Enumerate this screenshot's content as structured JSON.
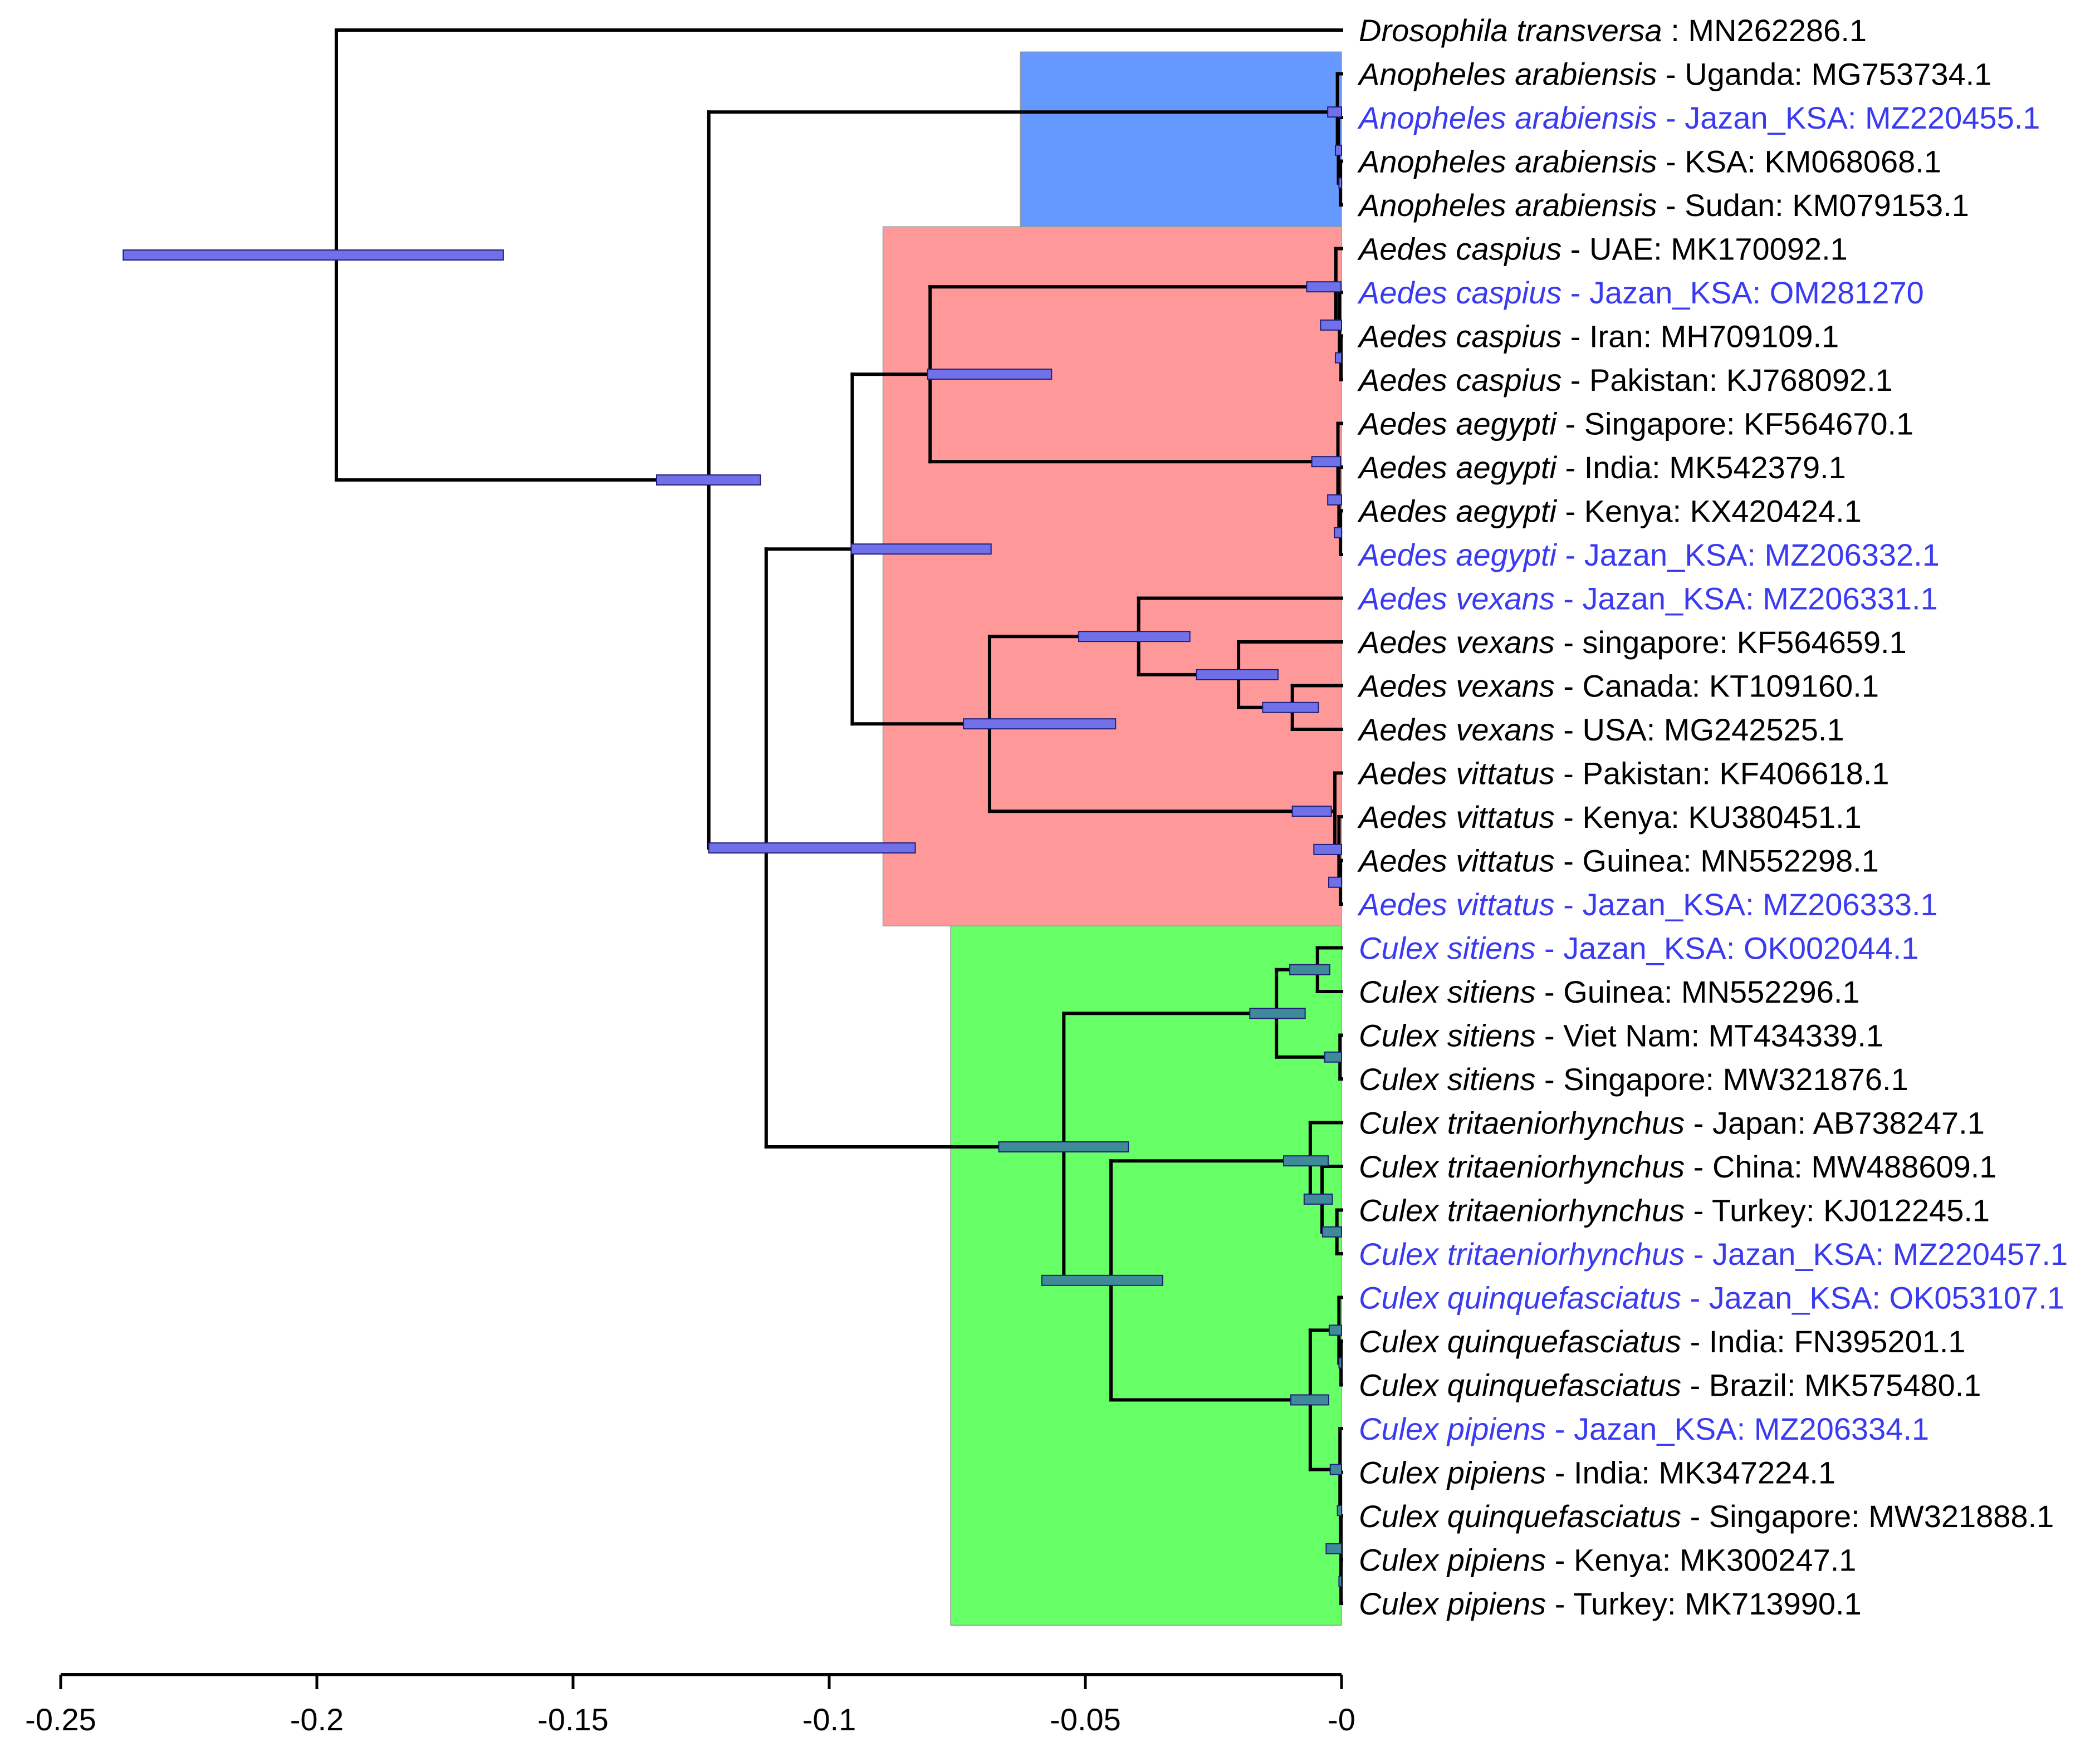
{
  "figure": {
    "type": "time-calibrated phylogenetic tree",
    "colors": {
      "branch": "#000000",
      "highlight_text": "#3a3af0",
      "normal_text": "#000000",
      "bar_fill_main": "#7070e8",
      "bar_fill_green": "#3e8a98",
      "bar_stroke": "#1f1f7a",
      "clade_anopheles": "#6699ff",
      "clade_aedes": "#ff9999",
      "clade_culex": "#66ff66"
    }
  },
  "taxa": [
    {
      "species": "Drosophila transversa",
      "sep": " : ",
      "location": "",
      "accession": "MN262286.1",
      "highlight": false
    },
    {
      "species": "Anopheles arabiensis",
      "sep": " - ",
      "location": "Uganda",
      "accession": "MG753734.1",
      "highlight": false
    },
    {
      "species": "Anopheles arabiensis",
      "sep": " - ",
      "location": "Jazan_KSA",
      "accession": "MZ220455.1",
      "highlight": true
    },
    {
      "species": "Anopheles arabiensis",
      "sep": " - ",
      "location": "KSA",
      "accession": "KM068068.1",
      "highlight": false
    },
    {
      "species": "Anopheles arabiensis",
      "sep": " - ",
      "location": "Sudan",
      "accession": "KM079153.1",
      "highlight": false
    },
    {
      "species": "Aedes caspius",
      "sep": " - ",
      "location": "UAE",
      "accession": "MK170092.1",
      "highlight": false
    },
    {
      "species": "Aedes caspius",
      "sep": " - ",
      "location": "Jazan_KSA",
      "accession": "OM281270",
      "highlight": true
    },
    {
      "species": "Aedes caspius",
      "sep": " - ",
      "location": "Iran",
      "accession": "MH709109.1",
      "highlight": false
    },
    {
      "species": "Aedes caspius",
      "sep": " - ",
      "location": "Pakistan",
      "accession": "KJ768092.1",
      "highlight": false
    },
    {
      "species": "Aedes aegypti",
      "sep": " - ",
      "location": "Singapore",
      "accession": "KF564670.1",
      "highlight": false
    },
    {
      "species": "Aedes aegypti",
      "sep": " - ",
      "location": "India",
      "accession": "MK542379.1",
      "highlight": false
    },
    {
      "species": "Aedes aegypti",
      "sep": " - ",
      "location": "Kenya",
      "accession": "KX420424.1",
      "highlight": false
    },
    {
      "species": "Aedes aegypti",
      "sep": " - ",
      "location": "Jazan_KSA",
      "accession": "MZ206332.1",
      "highlight": true
    },
    {
      "species": "Aedes vexans",
      "sep": " - ",
      "location": "Jazan_KSA",
      "accession": "MZ206331.1",
      "highlight": true
    },
    {
      "species": "Aedes vexans",
      "sep": " - ",
      "location": "singapore",
      "accession": "KF564659.1",
      "highlight": false
    },
    {
      "species": "Aedes vexans",
      "sep": " - ",
      "location": "Canada",
      "accession": "KT109160.1",
      "highlight": false
    },
    {
      "species": "Aedes vexans",
      "sep": " - ",
      "location": "USA",
      "accession": "MG242525.1",
      "highlight": false
    },
    {
      "species": "Aedes vittatus",
      "sep": " - ",
      "location": "Pakistan",
      "accession": "KF406618.1",
      "highlight": false
    },
    {
      "species": "Aedes vittatus",
      "sep": " - ",
      "location": "Kenya",
      "accession": "KU380451.1",
      "highlight": false
    },
    {
      "species": "Aedes vittatus",
      "sep": " - ",
      "location": "Guinea",
      "accession": "MN552298.1",
      "highlight": false
    },
    {
      "species": "Aedes vittatus",
      "sep": " - ",
      "location": "Jazan_KSA",
      "accession": "MZ206333.1",
      "highlight": true
    },
    {
      "species": "Culex sitiens",
      "sep": " - ",
      "location": "Jazan_KSA",
      "accession": "OK002044.1",
      "highlight": true
    },
    {
      "species": "Culex sitiens",
      "sep": " - ",
      "location": "Guinea",
      "accession": "MN552296.1",
      "highlight": false
    },
    {
      "species": "Culex sitiens",
      "sep": " - ",
      "location": "Viet Nam",
      "accession": "MT434339.1",
      "highlight": false
    },
    {
      "species": "Culex sitiens",
      "sep": " - ",
      "location": "Singapore",
      "accession": "MW321876.1",
      "highlight": false
    },
    {
      "species": "Culex tritaeniorhynchus",
      "sep": " - ",
      "location": "Japan",
      "accession": "AB738247.1",
      "highlight": false
    },
    {
      "species": "Culex tritaeniorhynchus",
      "sep": " - ",
      "location": "China",
      "accession": "MW488609.1",
      "highlight": false
    },
    {
      "species": "Culex tritaeniorhynchus",
      "sep": " - ",
      "location": "Turkey",
      "accession": "KJ012245.1",
      "highlight": false
    },
    {
      "species": "Culex tritaeniorhynchus",
      "sep": " - ",
      "location": "Jazan_KSA",
      "accession": "MZ220457.1",
      "highlight": true
    },
    {
      "species": "Culex quinquefasciatus",
      "sep": " - ",
      "location": "Jazan_KSA",
      "accession": "OK053107.1",
      "highlight": true
    },
    {
      "species": "Culex quinquefasciatus",
      "sep": " - ",
      "location": "India",
      "accession": "FN395201.1",
      "highlight": false
    },
    {
      "species": "Culex quinquefasciatus",
      "sep": " - ",
      "location": "Brazil",
      "accession": "MK575480.1",
      "highlight": false
    },
    {
      "species": "Culex pipiens",
      "sep": " - ",
      "location": "Jazan_KSA",
      "accession": "MZ206334.1",
      "highlight": true
    },
    {
      "species": "Culex pipiens",
      "sep": " - ",
      "location": "India",
      "accession": "MK347224.1",
      "highlight": false
    },
    {
      "species": "Culex quinquefasciatus",
      "sep": " - ",
      "location": "Singapore",
      "accession": "MW321888.1",
      "highlight": false
    },
    {
      "species": "Culex pipiens",
      "sep": " - ",
      "location": "Kenya",
      "accession": "MK300247.1",
      "highlight": false
    },
    {
      "species": "Culex pipiens",
      "sep": " - ",
      "location": "Turkey",
      "accession": "MK713990.1",
      "highlight": false
    }
  ],
  "clade_highlights": [
    {
      "name": "Anopheles",
      "first_tip": 1,
      "last_tip": 4,
      "start_time": -0.0627,
      "color": "#6699ff"
    },
    {
      "name": "Aedes",
      "first_tip": 5,
      "last_tip": 20,
      "start_time": -0.0895,
      "color": "#ff9999"
    },
    {
      "name": "Culex",
      "first_tip": 21,
      "last_tip": 36,
      "start_time": -0.0763,
      "color": "#66ff66"
    }
  ],
  "nodes": [
    {
      "id": "root",
      "time": -0.1962,
      "children": [
        0,
        "ingroup"
      ],
      "hpd": [
        -0.2378,
        -0.1636
      ]
    },
    {
      "id": "ingroup",
      "time": -0.1235,
      "children": [
        "anoph",
        "culicinae"
      ],
      "hpd": [
        -0.1337,
        -0.1134
      ]
    },
    {
      "id": "anoph",
      "time": -0.0008,
      "children": [
        1,
        "an_b"
      ],
      "hpd": [
        -0.0027,
        0.0
      ]
    },
    {
      "id": "an_b",
      "time": -0.0006,
      "children": [
        2,
        "an_c"
      ],
      "hpd": [
        -0.0012,
        0.0
      ]
    },
    {
      "id": "an_c",
      "time": -0.0002,
      "children": [
        3,
        4
      ],
      "hpd": [
        -0.0005,
        0.0
      ]
    },
    {
      "id": "culicinae",
      "time": -0.1123,
      "children": [
        "aedes",
        "culex"
      ],
      "hpd": [
        -0.1235,
        -0.0832
      ]
    },
    {
      "id": "aedes",
      "time": -0.0955,
      "children": [
        "casp_aeg",
        "vex_vit"
      ],
      "hpd": [
        -0.0957,
        -0.0684
      ]
    },
    {
      "id": "casp_aeg",
      "time": -0.0803,
      "children": [
        "caspius",
        "aegypti"
      ],
      "hpd": [
        -0.0808,
        -0.0566
      ]
    },
    {
      "id": "caspius",
      "time": -0.0011,
      "children": [
        5,
        "casp_b"
      ],
      "hpd": [
        -0.0068,
        -0.0001
      ]
    },
    {
      "id": "casp_b",
      "time": -0.0004,
      "children": [
        6,
        "casp_c"
      ],
      "hpd": [
        -0.0041,
        0.0
      ]
    },
    {
      "id": "casp_c",
      "time": -0.0001,
      "children": [
        7,
        8
      ],
      "hpd": [
        -0.0012,
        0.0
      ]
    },
    {
      "id": "aegypti",
      "time": -0.0007,
      "children": [
        9,
        "aeg_b"
      ],
      "hpd": [
        -0.0058,
        -0.0002
      ]
    },
    {
      "id": "aeg_b",
      "time": -0.0005,
      "children": [
        10,
        "aeg_c"
      ],
      "hpd": [
        -0.0027,
        0.0
      ]
    },
    {
      "id": "aeg_c",
      "time": -0.0002,
      "children": [
        11,
        12
      ],
      "hpd": [
        -0.0014,
        0.0
      ]
    },
    {
      "id": "vex_vit",
      "time": -0.0687,
      "children": [
        "vexans",
        "vittatus"
      ],
      "hpd": [
        -0.0738,
        -0.0441
      ]
    },
    {
      "id": "vexans",
      "time": -0.0396,
      "children": [
        13,
        "vex_b"
      ],
      "hpd": [
        -0.0513,
        -0.0296
      ]
    },
    {
      "id": "vex_b",
      "time": -0.0201,
      "children": [
        14,
        "vex_c"
      ],
      "hpd": [
        -0.0283,
        -0.0124
      ]
    },
    {
      "id": "vex_c",
      "time": -0.0096,
      "children": [
        15,
        16
      ],
      "hpd": [
        -0.0154,
        -0.0045
      ]
    },
    {
      "id": "vittatus",
      "time": -0.0013,
      "children": [
        17,
        "vit_b"
      ],
      "hpd": [
        -0.0096,
        -0.002
      ]
    },
    {
      "id": "vit_b",
      "time": -0.0005,
      "children": [
        18,
        "vit_c"
      ],
      "hpd": [
        -0.0054,
        0.0
      ]
    },
    {
      "id": "vit_c",
      "time": -0.0002,
      "children": [
        19,
        20
      ],
      "hpd": [
        -0.0025,
        0.0
      ]
    },
    {
      "id": "culex",
      "time": -0.0542,
      "children": [
        "sitiens",
        "trit_quin"
      ],
      "hpd": [
        -0.0669,
        -0.0416
      ]
    },
    {
      "id": "sitiens",
      "time": -0.0127,
      "children": [
        "sit_a",
        "sit_b"
      ],
      "hpd": [
        -0.0179,
        -0.0071
      ]
    },
    {
      "id": "sit_a",
      "time": -0.0047,
      "children": [
        21,
        22
      ],
      "hpd": [
        -0.0101,
        -0.0023
      ]
    },
    {
      "id": "sit_b",
      "time": -0.0003,
      "children": [
        23,
        24
      ],
      "hpd": [
        -0.0033,
        0.0
      ]
    },
    {
      "id": "trit_quin",
      "time": -0.045,
      "children": [
        "trit",
        "quin"
      ],
      "hpd": [
        -0.0585,
        -0.0349
      ]
    },
    {
      "id": "trit",
      "time": -0.0061,
      "children": [
        25,
        "trit_b"
      ],
      "hpd": [
        -0.0113,
        -0.0026
      ]
    },
    {
      "id": "trit_b",
      "time": -0.0038,
      "children": [
        26,
        "trit_c"
      ],
      "hpd": [
        -0.0073,
        -0.0018
      ]
    },
    {
      "id": "trit_c",
      "time": -0.0009,
      "children": [
        27,
        28
      ],
      "hpd": [
        -0.0037,
        0.0
      ]
    },
    {
      "id": "quin",
      "time": -0.0061,
      "children": [
        "q_a",
        "q_b"
      ],
      "hpd": [
        -0.0099,
        -0.0025
      ]
    },
    {
      "id": "q_a",
      "time": -0.0005,
      "children": [
        29,
        "q_a2"
      ],
      "hpd": [
        -0.0024,
        0.0
      ]
    },
    {
      "id": "q_a2",
      "time": -0.0001,
      "children": [
        30,
        31
      ],
      "hpd": [
        -0.0005,
        0.0
      ]
    },
    {
      "id": "q_b",
      "time": -0.0003,
      "children": [
        32,
        "q_b2"
      ],
      "hpd": [
        -0.0022,
        0.0
      ]
    },
    {
      "id": "q_b2",
      "time": -0.0002,
      "children": [
        33,
        "q_b3"
      ],
      "hpd": [
        -0.0008,
        0.0
      ]
    },
    {
      "id": "q_b3",
      "time": -0.0001,
      "children": [
        34,
        "q_b4"
      ],
      "hpd": [
        -0.003,
        0.0
      ]
    },
    {
      "id": "q_b4",
      "time": -0.0001,
      "children": [
        35,
        36
      ],
      "hpd": [
        -0.0005,
        0.0
      ]
    }
  ],
  "axis": {
    "min": -0.25,
    "max": 0,
    "ticks": [
      -0.25,
      -0.2,
      -0.15,
      -0.1,
      -0.05,
      0
    ],
    "tick_labels": [
      "-0.25",
      "-0.2",
      "-0.15",
      "-0.1",
      "-0.05",
      "-0"
    ]
  }
}
